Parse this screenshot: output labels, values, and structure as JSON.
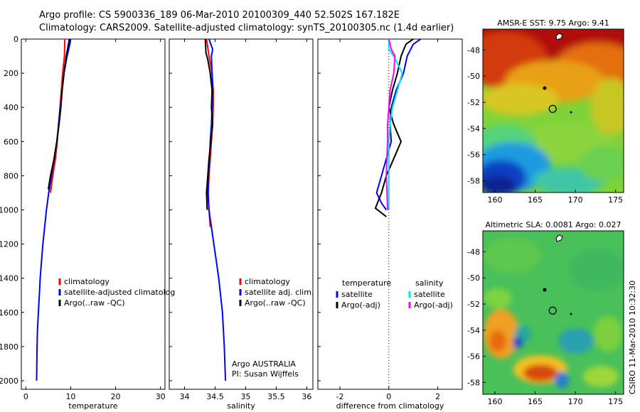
{
  "header": {
    "line1": "Argo profile: CS 5900336_189 06-Mar-2010 20100309_440 52.502S 167.182E",
    "line2": "Climatology: CARS2009. Satellite-adjusted climatology: synTS_20100305.nc (1.4d earlier)"
  },
  "credit": {
    "agency": "Argo AUSTRALIA",
    "pi": "PI: Susan Wijffels",
    "stamp": "CSIRO 11-Mar-2010 10:32:30"
  },
  "colors": {
    "climatology": "#ff0000",
    "satellite": "#0000ff",
    "argo": "#000000",
    "sat_salinity": "#00e5ee",
    "argo_salinity": "#ff00ff"
  },
  "chart_data": [
    {
      "type": "line",
      "xlabel": "temperature",
      "xlim": [
        -1,
        31
      ],
      "ylim": [
        2050,
        0
      ],
      "xticks": [
        "0",
        "10",
        "20",
        "30"
      ],
      "xtick_values": [
        0,
        10,
        20,
        30
      ],
      "yticks": [
        "0",
        "200",
        "400",
        "600",
        "800",
        "1000",
        "1200",
        "1400",
        "1600",
        "1800",
        "2000"
      ],
      "ytick_values": [
        0,
        200,
        400,
        600,
        800,
        1000,
        1200,
        1400,
        1600,
        1800,
        2000
      ],
      "legend": [
        "climatology",
        "satellite-adjusted climatolog",
        "Argo(..raw -QC)"
      ],
      "series": [
        {
          "name": "climatology",
          "color": "#ff0000",
          "x": [
            8.7,
            8.6,
            8.2,
            7.9,
            7.6,
            7.3,
            7.0,
            6.6,
            6.0,
            5.5
          ],
          "y": [
            0,
            100,
            200,
            300,
            400,
            500,
            600,
            700,
            800,
            900
          ]
        },
        {
          "name": "satellite-adjusted climatolog",
          "color": "#0000ff",
          "x": [
            10.0,
            9.8,
            9.2,
            8.5,
            8.1,
            7.7,
            7.3,
            6.9,
            6.3,
            5.7,
            5.1,
            4.6,
            4.2,
            3.8,
            3.5,
            3.2,
            3.0,
            2.8,
            2.6,
            2.5,
            2.4
          ],
          "y": [
            0,
            30,
            100,
            200,
            300,
            400,
            500,
            600,
            700,
            800,
            900,
            1000,
            1100,
            1200,
            1300,
            1400,
            1500,
            1600,
            1700,
            1800,
            2000
          ]
        },
        {
          "name": "Argo(..raw -QC)",
          "color": "#000000",
          "x": [
            9.7,
            9.5,
            9.0,
            8.5,
            8.1,
            7.8,
            7.4,
            6.9,
            6.3,
            5.5,
            5.0
          ],
          "y": [
            0,
            30,
            100,
            200,
            300,
            400,
            500,
            600,
            700,
            800,
            880
          ]
        }
      ]
    },
    {
      "type": "line",
      "xlabel": "salinity",
      "xlim": [
        33.75,
        36.1
      ],
      "ylim": [
        2050,
        0
      ],
      "xticks": [
        "34",
        "34.5",
        "35",
        "35.5",
        "36"
      ],
      "xtick_values": [
        34,
        34.5,
        35,
        35.5,
        36
      ],
      "legend": [
        "climatology",
        "satellite adj. clim.",
        "Argo(..raw -QC)"
      ],
      "series": [
        {
          "name": "climatology",
          "color": "#ff0000",
          "x": [
            34.36,
            34.38,
            34.4,
            34.45,
            34.47,
            34.47,
            34.46,
            34.44,
            34.42,
            34.4,
            34.39,
            34.4,
            34.42
          ],
          "y": [
            0,
            50,
            100,
            200,
            300,
            400,
            500,
            600,
            700,
            800,
            900,
            1000,
            1100
          ]
        },
        {
          "name": "satellite adj. clim.",
          "color": "#0000ff",
          "x": [
            34.4,
            34.46,
            34.44,
            34.45,
            34.46,
            34.45,
            34.44,
            34.42,
            34.41,
            34.39,
            34.38,
            34.4,
            34.44,
            34.48,
            34.52,
            34.56,
            34.59,
            34.62,
            34.65,
            34.67
          ],
          "y": [
            0,
            60,
            100,
            200,
            300,
            400,
            500,
            600,
            700,
            800,
            900,
            1000,
            1100,
            1200,
            1300,
            1400,
            1500,
            1600,
            1800,
            2000
          ]
        },
        {
          "name": "Argo(..raw -QC)",
          "color": "#000000",
          "x": [
            34.34,
            34.35,
            34.38,
            34.42,
            34.45,
            34.44,
            34.46,
            34.43,
            34.4,
            34.38,
            34.36,
            34.37
          ],
          "y": [
            0,
            80,
            120,
            200,
            300,
            400,
            500,
            600,
            700,
            800,
            900,
            1000
          ]
        }
      ]
    },
    {
      "type": "line",
      "xlabel": "difference from climatology",
      "xlim": [
        -2.9,
        3.0
      ],
      "ylim": [
        2050,
        0
      ],
      "xticks": [
        "-2",
        "0",
        "2"
      ],
      "xtick_values": [
        -2,
        0,
        2
      ],
      "legend_headers": [
        "temperature",
        "salinity"
      ],
      "legend": [
        "satellite",
        "Argo(-adj)",
        "satellite",
        "Argo(-adj)"
      ],
      "series": [
        {
          "name": "satellite",
          "group": "temperature",
          "color": "#0000ff",
          "x": [
            1.3,
            1.0,
            0.75,
            0.6,
            0.3,
            0.1,
            0.05,
            0.1,
            -0.1,
            -0.3,
            -0.5,
            -0.3,
            -0.1
          ],
          "y": [
            0,
            30,
            100,
            200,
            300,
            400,
            500,
            600,
            700,
            800,
            900,
            960,
            1000
          ]
        },
        {
          "name": "Argo(-adj)",
          "group": "temperature",
          "color": "#000000",
          "x": [
            1.0,
            0.7,
            0.5,
            0.35,
            0.15,
            0.0,
            0.2,
            0.5,
            0.2,
            -0.1,
            -0.3,
            -0.55,
            -0.1
          ],
          "y": [
            0,
            30,
            100,
            200,
            300,
            400,
            500,
            600,
            700,
            800,
            900,
            990,
            1040
          ]
        },
        {
          "name": "satellite",
          "group": "salinity",
          "color": "#00e5ee",
          "x": [
            0.0,
            0.0,
            0.2,
            0.55,
            0.35,
            0.15,
            0.05,
            0.0,
            0.0,
            0.0,
            0.0
          ],
          "y": [
            0,
            60,
            100,
            200,
            300,
            400,
            500,
            600,
            700,
            800,
            1000
          ]
        },
        {
          "name": "Argo(-adj)",
          "group": "salinity",
          "color": "#ff00ff",
          "x": [
            0.0,
            0.1,
            0.25,
            0.2,
            0.05,
            0.0,
            -0.05,
            -0.05,
            -0.08,
            -0.1,
            -0.05
          ],
          "y": [
            0,
            60,
            100,
            200,
            300,
            400,
            500,
            600,
            700,
            800,
            1000
          ]
        }
      ]
    },
    {
      "type": "heatmap",
      "title": "AMSR-E SST: 9.75 Argo: 9.41",
      "xlim": [
        158.5,
        176
      ],
      "ylim": [
        -58.9,
        -46.4
      ],
      "xticks": [
        "160",
        "165",
        "170",
        "175"
      ],
      "xtick_values": [
        160,
        165,
        170,
        175
      ],
      "yticks": [
        "-48",
        "-50",
        "-52",
        "-54",
        "-56",
        "-58"
      ],
      "ytick_values": [
        -48,
        -50,
        -52,
        -54,
        -56,
        -58
      ],
      "marker": {
        "lon": 167.182,
        "lat": -52.502
      }
    },
    {
      "type": "heatmap",
      "title": "Altimetric SLA: 0.0081 Argo: 0.027",
      "xlim": [
        158.5,
        176
      ],
      "ylim": [
        -58.9,
        -46.4
      ],
      "xticks": [
        "160",
        "165",
        "170",
        "175"
      ],
      "xtick_values": [
        160,
        165,
        170,
        175
      ],
      "yticks": [
        "-48",
        "-50",
        "-52",
        "-54",
        "-56",
        "-58"
      ],
      "ytick_values": [
        -48,
        -50,
        -52,
        -54,
        -56,
        -58
      ],
      "marker": {
        "lon": 167.182,
        "lat": -52.502
      }
    }
  ]
}
